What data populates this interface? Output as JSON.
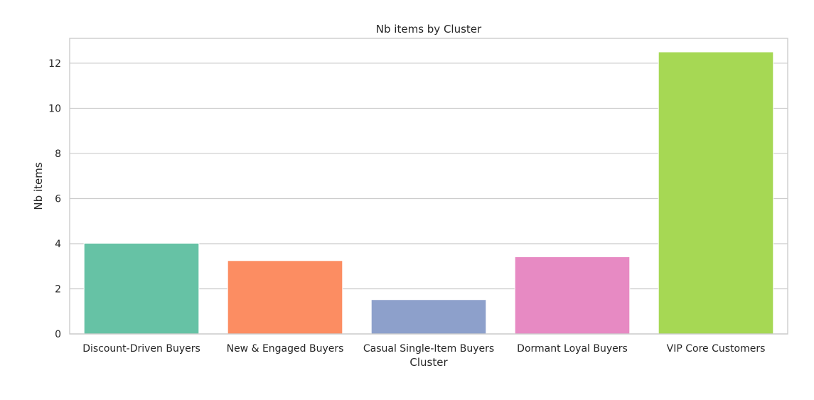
{
  "chart_data": {
    "type": "bar",
    "title": "Nb items by Cluster",
    "xlabel": "Cluster",
    "ylabel": "Nb items",
    "categories": [
      "Discount-Driven Buyers",
      "New & Engaged Buyers",
      "Casual Single-Item Buyers",
      "Dormant Loyal Buyers",
      "VIP Core Customers"
    ],
    "values": [
      4.02,
      3.25,
      1.52,
      3.42,
      12.5
    ],
    "colors": [
      "#66c2a5",
      "#fc8d62",
      "#8da0cb",
      "#e78ac3",
      "#a6d854"
    ],
    "ylim": [
      0,
      13.1
    ],
    "yticks": [
      0,
      2,
      4,
      6,
      8,
      10,
      12
    ],
    "grid": true
  }
}
